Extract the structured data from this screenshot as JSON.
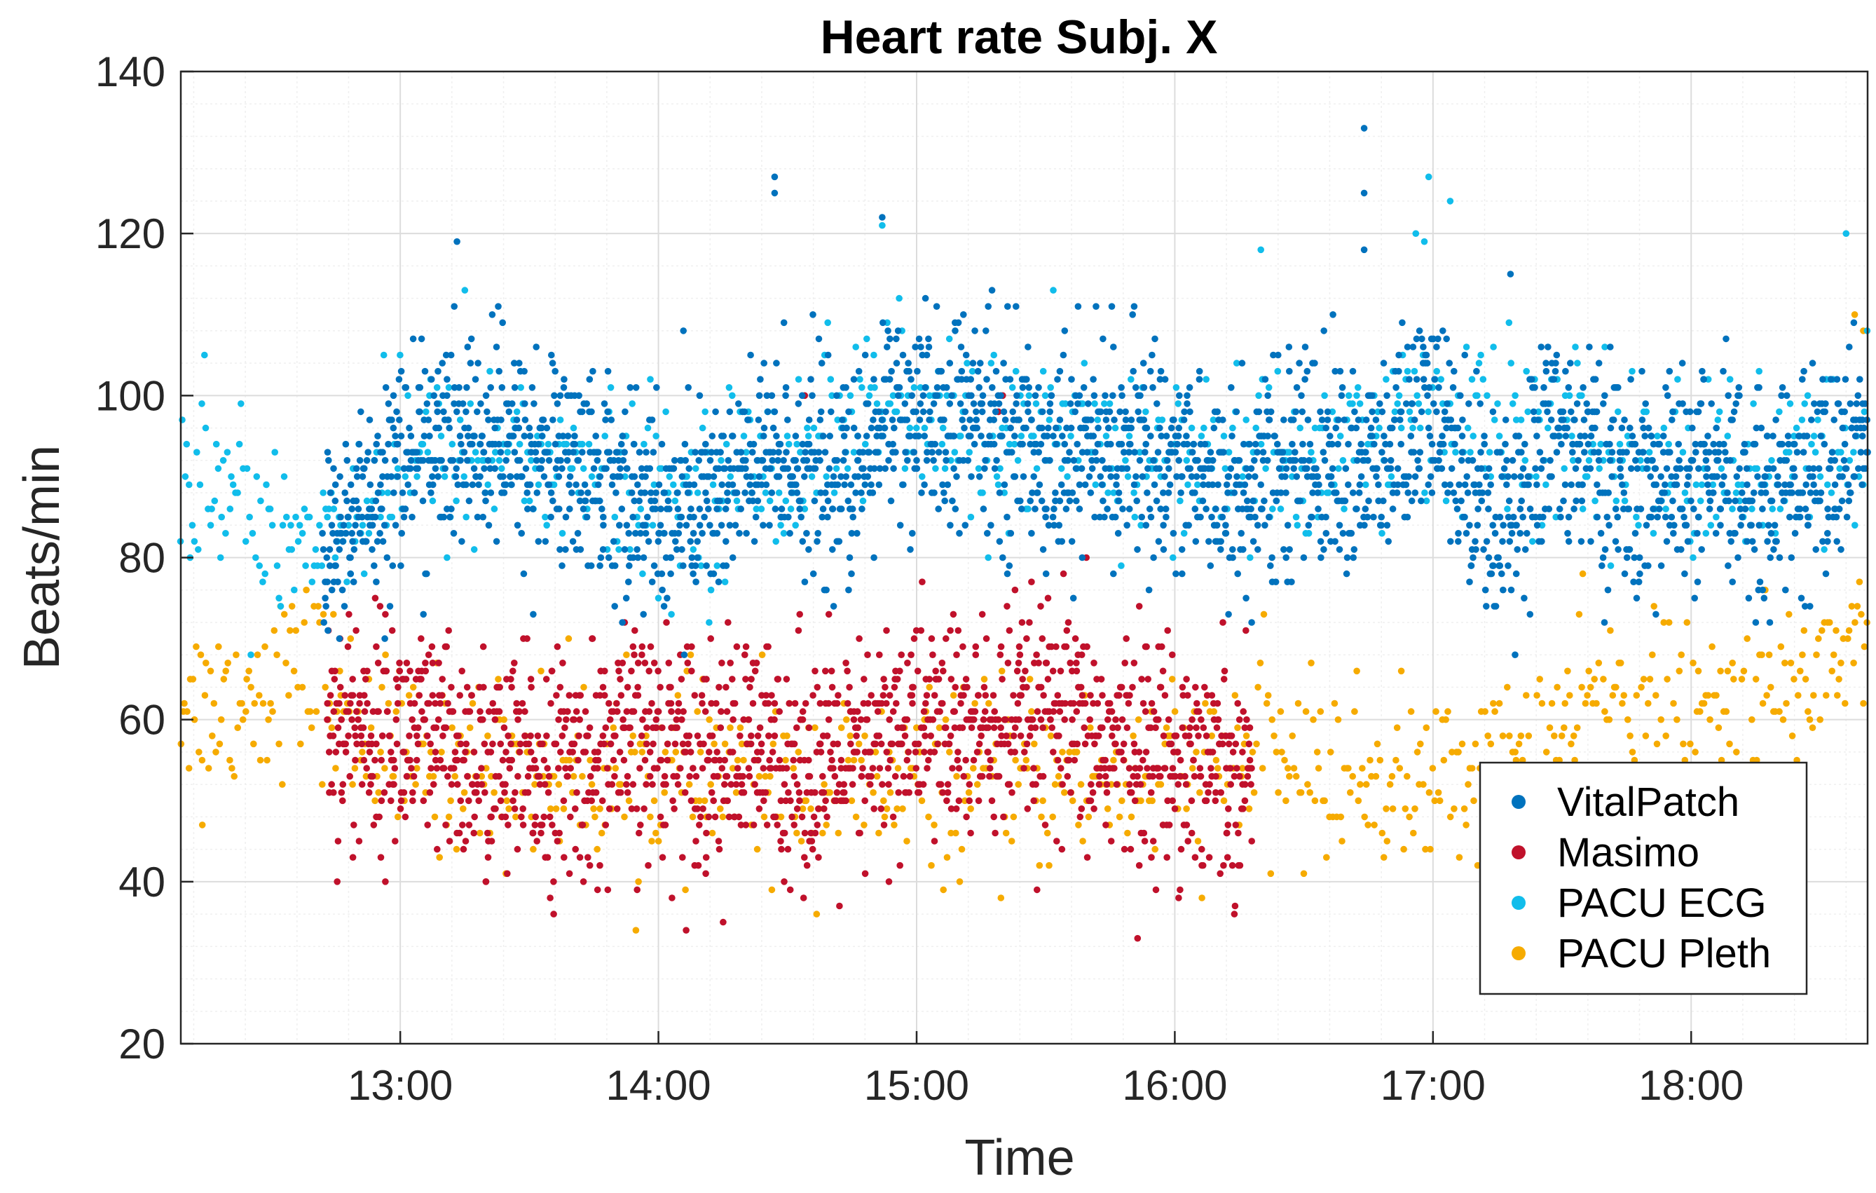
{
  "chart_data": {
    "type": "scatter",
    "title": "Heart rate Subj. X",
    "xlabel": "Time",
    "ylabel": "Beats/min",
    "xlim": [
      "12:09",
      "18:41"
    ],
    "ylim": [
      20,
      140
    ],
    "yticks": [
      20,
      40,
      60,
      80,
      100,
      120,
      140
    ],
    "xticks": [
      "13:00",
      "14:00",
      "15:00",
      "16:00",
      "17:00",
      "18:00"
    ],
    "grid": true,
    "minor_grid": true,
    "legend_position": "bottom-right",
    "series": [
      {
        "name": "VitalPatch",
        "color": "#0072BD",
        "time_span": [
          "12:42",
          "18:41"
        ],
        "trend_time": [
          "12:42",
          "12:50",
          "13:00",
          "13:15",
          "13:30",
          "13:45",
          "14:00",
          "14:15",
          "14:30",
          "14:45",
          "14:55",
          "15:00",
          "15:15",
          "15:30",
          "15:45",
          "16:00",
          "16:15",
          "16:30",
          "16:45",
          "17:00",
          "17:15",
          "17:30",
          "17:45",
          "18:00",
          "18:15",
          "18:30",
          "18:41"
        ],
        "trend_bpm": [
          79,
          86,
          92,
          95,
          93,
          91,
          85,
          88,
          93,
          88,
          100,
          95,
          97,
          93,
          94,
          92,
          88,
          93,
          90,
          98,
          84,
          96,
          88,
          90,
          88,
          90,
          95
        ],
        "spread_bpm": 6.5,
        "outliers": [
          [
            "14:27",
            127
          ],
          [
            "14:27",
            125
          ],
          [
            "14:52",
            122
          ],
          [
            "16:44",
            133
          ],
          [
            "16:44",
            125
          ],
          [
            "16:44",
            118
          ],
          [
            "17:18",
            115
          ]
        ]
      },
      {
        "name": "Masimo",
        "color": "#C0112B",
        "time_span": [
          "12:43",
          "16:18"
        ],
        "trend_time": [
          "12:43",
          "13:00",
          "13:20",
          "13:40",
          "14:00",
          "14:15",
          "14:30",
          "14:45",
          "15:00",
          "15:15",
          "15:30",
          "15:45",
          "16:00",
          "16:18"
        ],
        "trend_bpm": [
          60,
          58,
          54,
          54,
          58,
          56,
          55,
          54,
          60,
          58,
          60,
          57,
          56,
          54
        ],
        "spread_bpm": 7,
        "outliers": [
          [
            "12:49",
            43
          ],
          [
            "14:11",
            41
          ],
          [
            "15:20",
            100
          ],
          [
            "15:19",
            98
          ],
          [
            "14:34",
            100
          ]
        ]
      },
      {
        "name": "PACU ECG",
        "color": "#11BDEB",
        "time_span": [
          "12:09",
          "18:41"
        ],
        "trend_time": [
          "12:09",
          "12:20",
          "12:30",
          "12:40",
          "12:50",
          "13:00",
          "13:30",
          "14:00",
          "14:30",
          "14:50",
          "15:00",
          "15:30",
          "16:00",
          "16:30",
          "17:00",
          "17:30",
          "18:00",
          "18:30",
          "18:41"
        ],
        "trend_bpm": [
          91,
          88,
          85,
          82,
          87,
          92,
          93,
          87,
          92,
          100,
          96,
          94,
          92,
          92,
          98,
          94,
          90,
          91,
          96
        ],
        "spread_bpm": 5.5,
        "outliers": [
          [
            "14:52",
            121
          ],
          [
            "16:59",
            127
          ],
          [
            "17:04",
            124
          ],
          [
            "16:56",
            120
          ],
          [
            "16:58",
            119
          ],
          [
            "18:36",
            120
          ],
          [
            "13:15",
            113
          ],
          [
            "16:20",
            118
          ]
        ]
      },
      {
        "name": "PACU Pleth",
        "color": "#F6AB00",
        "time_span": [
          "12:09",
          "18:41"
        ],
        "trend_time": [
          "12:09",
          "12:20",
          "12:30",
          "12:40",
          "12:45",
          "13:00",
          "14:00",
          "15:00",
          "16:00",
          "16:20",
          "16:40",
          "17:00",
          "17:20",
          "17:40",
          "18:00",
          "18:20",
          "18:41"
        ],
        "trend_bpm": [
          63,
          62,
          65,
          66,
          62,
          55,
          53,
          52,
          53,
          56,
          53,
          52,
          55,
          63,
          60,
          62,
          72
        ],
        "spread_bpm": 5.5,
        "outliers": [
          [
            "18:38",
            110
          ],
          [
            "18:40",
            108
          ],
          [
            "12:14",
            47
          ]
        ]
      }
    ]
  }
}
